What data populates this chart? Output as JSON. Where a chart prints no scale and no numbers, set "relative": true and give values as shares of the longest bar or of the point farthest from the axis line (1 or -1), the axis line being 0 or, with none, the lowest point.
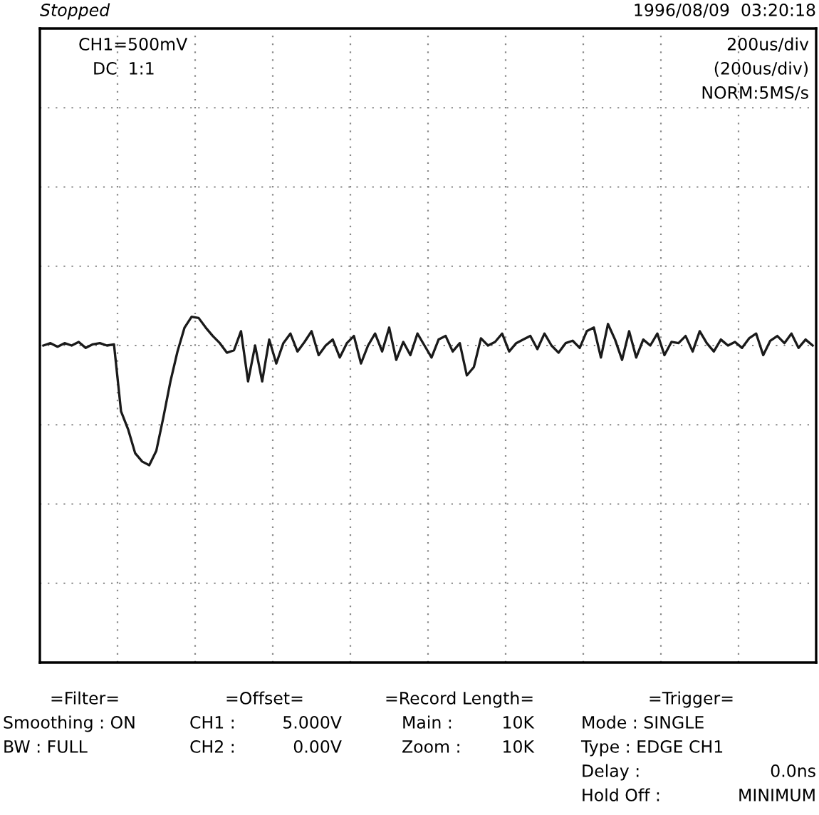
{
  "chart_data": {
    "type": "line",
    "relative": true,
    "grid": true,
    "color": "#1a1a1a",
    "categories": [
      null,
      null,
      null,
      null,
      null,
      null,
      null,
      null,
      null,
      null,
      null,
      null,
      null,
      null,
      null,
      null,
      null,
      null,
      null,
      null,
      null,
      null,
      null,
      null,
      null,
      null,
      null,
      null,
      null,
      null,
      null,
      null,
      null,
      null,
      null,
      null,
      null,
      null,
      null,
      null,
      null,
      null,
      null,
      null,
      null,
      null,
      null,
      null,
      null,
      null,
      null,
      null,
      null,
      null,
      null,
      null,
      null,
      null,
      null,
      null,
      null,
      null,
      null,
      null,
      null,
      null,
      null,
      null,
      null,
      null,
      null,
      null,
      null,
      null,
      null,
      null,
      null,
      null,
      null,
      null,
      null,
      null,
      null,
      null,
      null,
      null,
      null,
      null,
      null,
      null,
      null,
      null,
      null,
      null,
      null,
      null,
      null,
      null,
      null,
      null,
      null,
      null,
      null,
      null,
      null,
      null,
      null,
      null,
      null,
      null
    ],
    "values": [
      0,
      0.02,
      -0.01,
      0.02,
      0,
      0.03,
      -0.02,
      0.01,
      0.02,
      0,
      0.01,
      -0.55,
      -0.7,
      -0.9,
      -0.97,
      -1,
      -0.88,
      -0.6,
      -0.3,
      -0.05,
      0.15,
      0.24,
      0.23,
      0.15,
      0.08,
      0.02,
      -0.06,
      -0.04,
      0.12,
      -0.3,
      0,
      -0.3,
      0.05,
      -0.15,
      0.02,
      0.1,
      -0.05,
      0.03,
      0.12,
      -0.08,
      0,
      0.05,
      -0.1,
      0.02,
      0.08,
      -0.15,
      0,
      0.1,
      -0.05,
      0.15,
      -0.12,
      0.03,
      -0.08,
      0.1,
      0,
      -0.1,
      0.05,
      0.08,
      -0.05,
      0.02,
      -0.25,
      -0.18,
      0.06,
      0,
      0.03,
      0.1,
      -0.05,
      0.02,
      0.05,
      0.08,
      -0.03,
      0.1,
      0,
      -0.06,
      0.02,
      0.04,
      -0.02,
      0.12,
      0.15,
      -0.1,
      0.18,
      0.05,
      -0.12,
      0.12,
      -0.1,
      0.05,
      0,
      0.1,
      -0.08,
      0.03,
      0.02,
      0.08,
      -0.05,
      0.12,
      0.02,
      -0.05,
      0.05,
      0.0,
      0.03,
      -0.02,
      0.06,
      0.1,
      -0.08,
      0.04,
      0.08,
      0.02,
      0.1,
      -0.02,
      0.05,
      0.0
    ],
    "annotations": [
      "Stopped",
      "1996/08/09  03:20:18",
      "CH1=500mV",
      "DC  1:1",
      "200us/div",
      "(200us/div)",
      "NORM:5MS/s",
      "=Filter=",
      "Smoothing : ON",
      "BW : FULL",
      "=Offset=",
      "CH1 :",
      "5.000V",
      "CH2 :",
      "0.00V",
      "=Record Length=",
      "Main :",
      "10K",
      "Zoom :",
      "10K",
      "=Trigger=",
      "Mode : SINGLE",
      "Type : EDGE CH1",
      "Delay :",
      "0.0ns",
      "Hold Off :",
      "MINIMUM"
    ]
  }
}
